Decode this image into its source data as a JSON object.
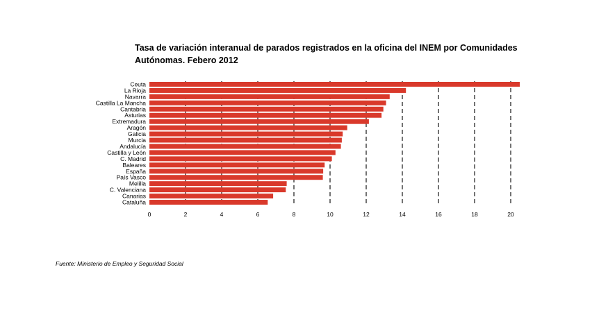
{
  "chart_data": {
    "type": "bar",
    "orientation": "horizontal",
    "title_line1": "Tasa de variación interanual de parados registrados en la oficina del INEM por Comunidades",
    "title_line2": "Autónomas. Febero 2012",
    "categories": [
      "Ceuta",
      "La Rioja",
      "Navarra",
      "Castilla La Mancha",
      "Cantabria",
      "Asturias",
      "Extremadura",
      "Aragón",
      "Galicia",
      "Murcia",
      "Andalucía",
      "Castilla y León",
      "C. Madrid",
      "Baleares",
      "España",
      "País Vasco",
      "Melilla",
      "C. Valenciana",
      "Canarias",
      "Cataluña"
    ],
    "values": [
      20.5,
      14.2,
      13.3,
      13.1,
      12.95,
      12.85,
      12.15,
      10.95,
      10.7,
      10.65,
      10.6,
      10.3,
      10.1,
      9.7,
      9.62,
      9.6,
      7.6,
      7.55,
      6.85,
      6.55
    ],
    "xlim": [
      0,
      20
    ],
    "xticks": [
      "0",
      "2",
      "4",
      "6",
      "8",
      "10",
      "12",
      "14",
      "16",
      "18",
      "20"
    ],
    "gridlines": "vertical dashed",
    "bar_color": "#d9392b",
    "source": "Fuente: Ministerio de Empleo y Seguridad Social"
  }
}
